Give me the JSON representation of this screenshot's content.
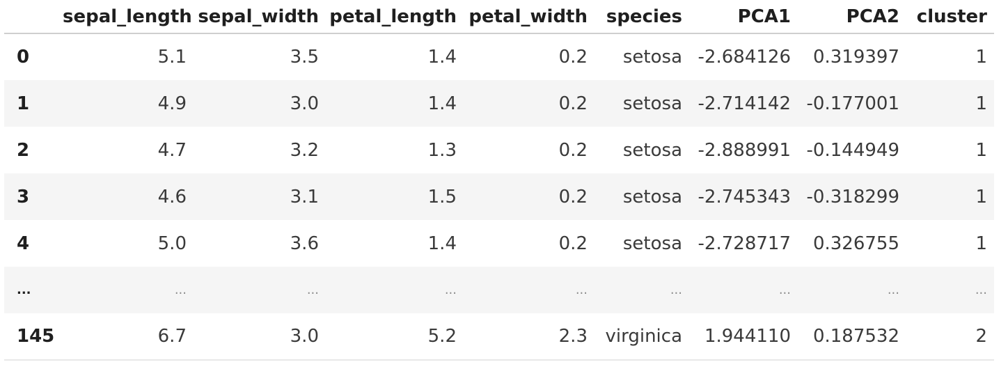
{
  "dataframe": {
    "columns": [
      "",
      "sepal_length",
      "sepal_width",
      "petal_length",
      "petal_width",
      "species",
      "PCA1",
      "PCA2",
      "cluster"
    ],
    "rows": [
      [
        "0",
        "5.1",
        "3.5",
        "1.4",
        "0.2",
        "setosa",
        "-2.684126",
        "0.319397",
        "1"
      ],
      [
        "1",
        "4.9",
        "3.0",
        "1.4",
        "0.2",
        "setosa",
        "-2.714142",
        "-0.177001",
        "1"
      ],
      [
        "2",
        "4.7",
        "3.2",
        "1.3",
        "0.2",
        "setosa",
        "-2.888991",
        "-0.144949",
        "1"
      ],
      [
        "3",
        "4.6",
        "3.1",
        "1.5",
        "0.2",
        "setosa",
        "-2.745343",
        "-0.318299",
        "1"
      ],
      [
        "4",
        "5.0",
        "3.6",
        "1.4",
        "0.2",
        "setosa",
        "-2.728717",
        "0.326755",
        "1"
      ],
      [
        "...",
        "...",
        "...",
        "...",
        "...",
        "...",
        "...",
        "...",
        "..."
      ],
      [
        "145",
        "6.7",
        "3.0",
        "5.2",
        "2.3",
        "virginica",
        "1.944110",
        "0.187532",
        "2"
      ]
    ]
  }
}
